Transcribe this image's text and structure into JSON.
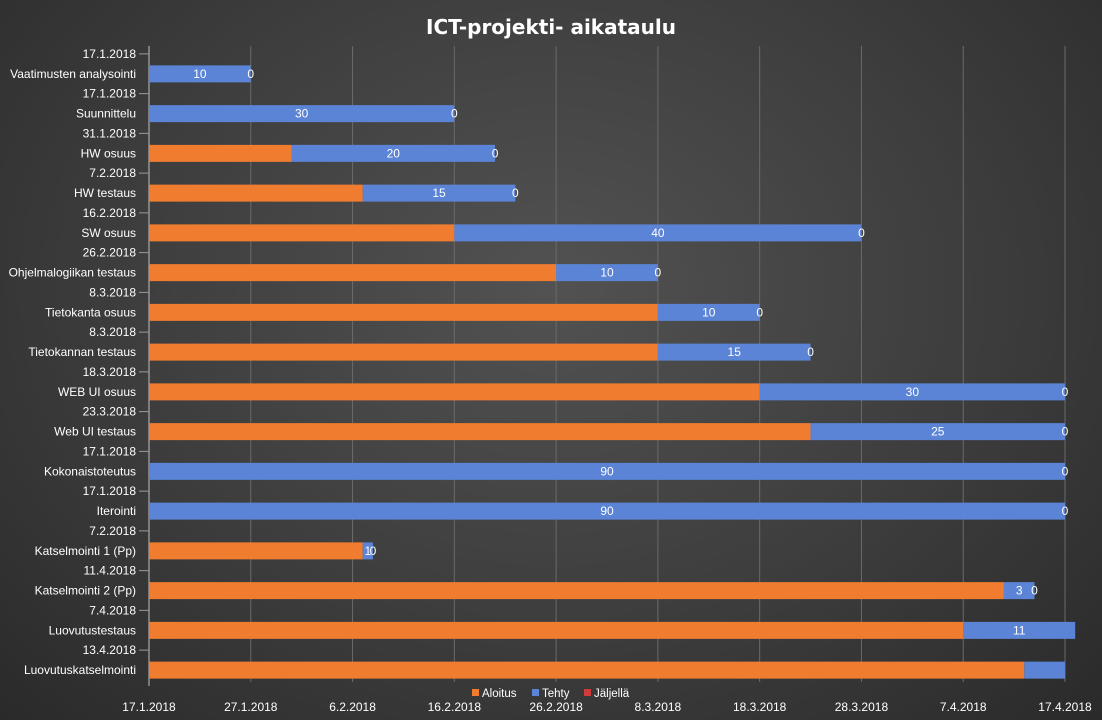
{
  "chart_data": {
    "type": "bar",
    "orientation": "horizontal-stacked",
    "title": "ICT-projekti- aikataulu",
    "categories": [
      "Vaatimusten analysointi",
      "Suunnittelu",
      "HW osuus",
      "HW testaus",
      "SW osuus",
      "Ohjelmalogiikan testaus",
      "Tietokanta osuus",
      "Tietokannan testaus",
      "WEB UI osuus",
      "Web UI testaus",
      "Kokonaistoteutus",
      "Iterointi",
      "Katselmointi 1 (Pp)",
      "Katselmointi 2 (Pp)",
      "Luovutustestaus",
      "Luovutuskatselmointi"
    ],
    "start_labels": [
      "17.1.2018",
      "17.1.2018",
      "31.1.2018",
      "7.2.2018",
      "16.2.2018",
      "26.2.2018",
      "8.3.2018",
      "8.3.2018",
      "18.3.2018",
      "23.3.2018",
      "17.1.2018",
      "17.1.2018",
      "7.2.2018",
      "11.4.2018",
      "7.4.2018",
      "13.4.2018"
    ],
    "series": [
      {
        "name": "Aloitus",
        "color": "#f07c30",
        "values": [
          "2018-01-17",
          "2018-01-17",
          "2018-01-31",
          "2018-02-07",
          "2018-02-16",
          "2018-02-26",
          "2018-03-08",
          "2018-03-08",
          "2018-03-18",
          "2018-03-23",
          "2018-01-17",
          "2018-01-17",
          "2018-02-07",
          "2018-04-11",
          "2018-04-07",
          "2018-04-13"
        ]
      },
      {
        "name": "Tehty",
        "color": "#5b84d6",
        "values": [
          10,
          30,
          20,
          15,
          40,
          10,
          10,
          15,
          30,
          25,
          90,
          90,
          1,
          3,
          11,
          4
        ]
      },
      {
        "name": "Jäljellä",
        "color": "#d03a3a",
        "values": [
          0,
          0,
          0,
          0,
          0,
          0,
          0,
          0,
          0,
          0,
          0,
          0,
          0,
          0,
          0,
          0
        ]
      }
    ],
    "data_labels": {
      "Tehty": [
        "10",
        "30",
        "20",
        "15",
        "40",
        "10",
        "10",
        "15",
        "30",
        "25",
        "90",
        "90",
        "1",
        "3",
        "11",
        ""
      ],
      "Jäljellä": [
        "0",
        "0",
        "0",
        "0",
        "0",
        "0",
        "0",
        "0",
        "0",
        "0",
        "0",
        "0",
        "0",
        "0",
        "",
        ""
      ]
    },
    "x_ticks": [
      "17.1.2018",
      "27.1.2018",
      "6.2.2018",
      "16.2.2018",
      "26.2.2018",
      "8.3.2018",
      "18.3.2018",
      "28.3.2018",
      "7.4.2018",
      "17.4.2018"
    ],
    "xlim": [
      "2018-01-17",
      "2018-04-17"
    ],
    "grid": true,
    "legend": "bottom"
  }
}
